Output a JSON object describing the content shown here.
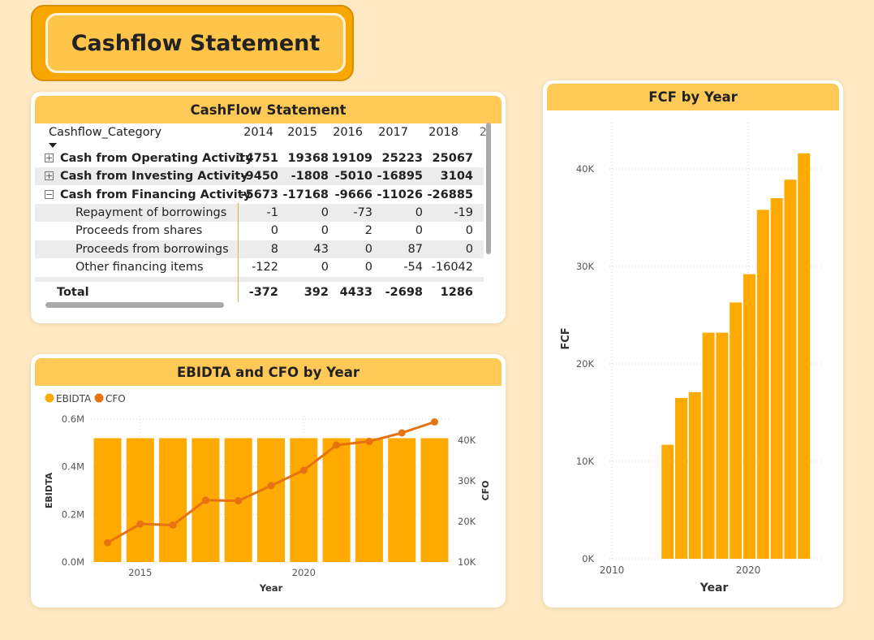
{
  "page_title": "Cashflow Statement",
  "table_card": {
    "title": "CashFlow Statement",
    "column_header": "Cashflow_Category",
    "years": [
      "2014",
      "2015",
      "2016",
      "2017",
      "2018"
    ],
    "rows": [
      {
        "label": "Cash from Operating Activity",
        "values": [
          "14751",
          "19368",
          "19109",
          "25223",
          "25067"
        ]
      },
      {
        "label": "Cash from Investing Activity",
        "values": [
          "-9450",
          "-1808",
          "-5010",
          "-16895",
          "3104"
        ]
      },
      {
        "label": "Cash from Financing Activity",
        "values": [
          "-5673",
          "-17168",
          "-9666",
          "-11026",
          "-26885"
        ]
      },
      {
        "label": "Repayment of borrowings",
        "values": [
          "-1",
          "0",
          "-73",
          "0",
          "-19"
        ]
      },
      {
        "label": "Proceeds from shares",
        "values": [
          "0",
          "0",
          "2",
          "0",
          "0"
        ]
      },
      {
        "label": "Proceeds from borrowings",
        "values": [
          "8",
          "43",
          "0",
          "87",
          "0"
        ]
      },
      {
        "label": "Other financing items",
        "values": [
          "-122",
          "0",
          "0",
          "-54",
          "-16042"
        ]
      }
    ],
    "total": {
      "label": "Total",
      "values": [
        "-372",
        "392",
        "4433",
        "-2698",
        "1286"
      ]
    }
  },
  "ebitda_card": {
    "title": "EBIDTA and CFO by Year",
    "legend": [
      "EBIDTA",
      "CFO"
    ]
  },
  "fcf_card": {
    "title": "FCF by Year"
  },
  "colors": {
    "bar": "#FFAA00",
    "line": "#E6730F",
    "header": "#FEC957",
    "title_button": "#FFC54A"
  },
  "chart_data": [
    {
      "type": "bar",
      "title": "EBIDTA and CFO by Year",
      "xlabel": "Year",
      "ylabel": "EBIDTA",
      "y2label": "CFO",
      "x": [
        2014,
        2015,
        2016,
        2017,
        2018,
        2019,
        2020,
        2021,
        2022,
        2023,
        2024
      ],
      "x_ticks": [
        "2015",
        "2020"
      ],
      "y_ticks": [
        "0.0M",
        "0.2M",
        "0.4M",
        "0.6M"
      ],
      "y2_ticks": [
        "10K",
        "20K",
        "30K",
        "40K"
      ],
      "ylim": [
        0,
        0.6
      ],
      "y2lim": [
        10000,
        45000
      ],
      "series": [
        {
          "name": "EBIDTA",
          "type": "bar",
          "axis": "left",
          "values": [
            0.52,
            0.52,
            0.52,
            0.52,
            0.52,
            0.52,
            0.52,
            0.52,
            0.52,
            0.52,
            0.52
          ]
        },
        {
          "name": "CFO",
          "type": "line",
          "axis": "right",
          "values": [
            14751,
            19368,
            19109,
            25223,
            25067,
            28800,
            32600,
            38800,
            39700,
            41800,
            44500
          ]
        }
      ],
      "legend": "top-left"
    },
    {
      "type": "bar",
      "title": "FCF by Year",
      "xlabel": "Year",
      "ylabel": "FCF",
      "x_ticks": [
        "2010",
        "2020"
      ],
      "y_ticks": [
        "0K",
        "10K",
        "20K",
        "30K",
        "40K"
      ],
      "xlim": [
        2008,
        2025
      ],
      "ylim": [
        0,
        45000
      ],
      "x": [
        2014,
        2015,
        2016,
        2017,
        2018,
        2019,
        2020,
        2021,
        2022,
        2023,
        2024
      ],
      "values": [
        11700,
        16500,
        17100,
        23200,
        23200,
        26300,
        29200,
        35800,
        37000,
        38900,
        41600
      ]
    }
  ]
}
